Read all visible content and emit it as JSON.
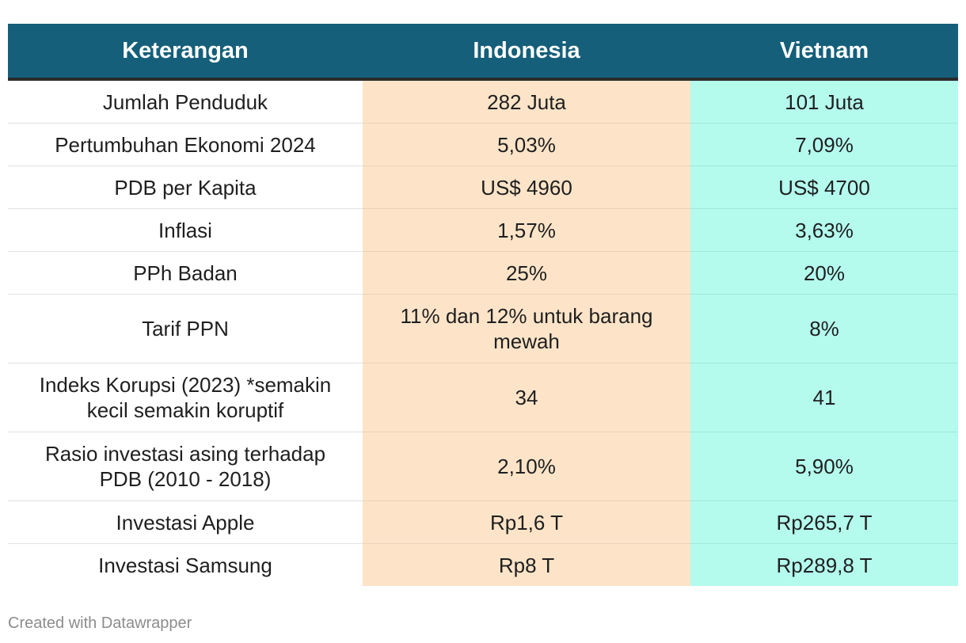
{
  "chart_data": {
    "type": "table",
    "columns": [
      "Keterangan",
      "Indonesia",
      "Vietnam"
    ],
    "rows": [
      [
        "Jumlah Penduduk",
        "282 Juta",
        "101 Juta"
      ],
      [
        "Pertumbuhan Ekonomi 2024",
        "5,03%",
        "7,09%"
      ],
      [
        "PDB per Kapita",
        "US$ 4960",
        "US$ 4700"
      ],
      [
        "Inflasi",
        "1,57%",
        "3,63%"
      ],
      [
        "PPh Badan",
        "25%",
        "20%"
      ],
      [
        "Tarif PPN",
        "11% dan 12% untuk barang mewah",
        "8%"
      ],
      [
        "Indeks Korupsi (2023) *semakin kecil semakin koruptif",
        "34",
        "41"
      ],
      [
        "Rasio investasi asing terhadap PDB (2010 - 2018)",
        "2,10%",
        "5,90%"
      ],
      [
        "Investasi Apple",
        "Rp1,6 T",
        "Rp265,7 T"
      ],
      [
        "Investasi Samsung",
        "Rp8 T",
        "Rp289,8 T"
      ]
    ]
  },
  "colors": {
    "header_bg": "#155f7a",
    "indonesia_bg": "#fde4c8",
    "vietnam_bg": "#b4fbee"
  },
  "footer": "Created with Datawrapper"
}
